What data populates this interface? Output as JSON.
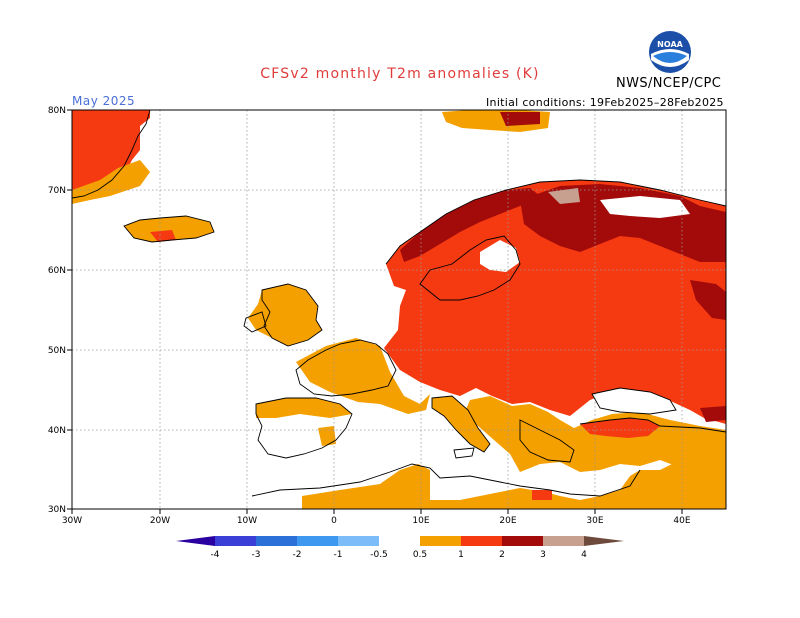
{
  "header": {
    "title": "CFSv2 monthly T2m anomalies (K)",
    "agency": "NWS/NCEP/CPC",
    "period": "May 2025",
    "initial_conditions": "Initial conditions: 19Feb2025–28Feb2025",
    "logo_text": "NOAA"
  },
  "axes": {
    "lon_labels": [
      "30W",
      "20W",
      "10W",
      "0",
      "10E",
      "20E",
      "30E",
      "40E"
    ],
    "lat_labels": [
      "80N",
      "70N",
      "60N",
      "50N",
      "40N",
      "30N"
    ]
  },
  "colorbar": {
    "ticks": [
      "-4",
      "-3",
      "-2",
      "-1",
      "-0.5",
      "0.5",
      "1",
      "2",
      "3",
      "4"
    ],
    "colors": [
      "#2a00a0",
      "#3b3fd8",
      "#2b6fd8",
      "#3f98f0",
      "#7cbcf8",
      "#ffffff",
      "#f4a000",
      "#f53a12",
      "#a30a0a",
      "#c7a08f",
      "#6e4a3c"
    ]
  },
  "legend_colors": {
    "anomaly_0.5_1": "#f4a000",
    "anomaly_1_2": "#f53a12",
    "anomaly_2_3": "#a30a0a",
    "anomaly_3_4": "#c7a08f",
    "coastline": "#000000",
    "gridline": "#999999"
  }
}
